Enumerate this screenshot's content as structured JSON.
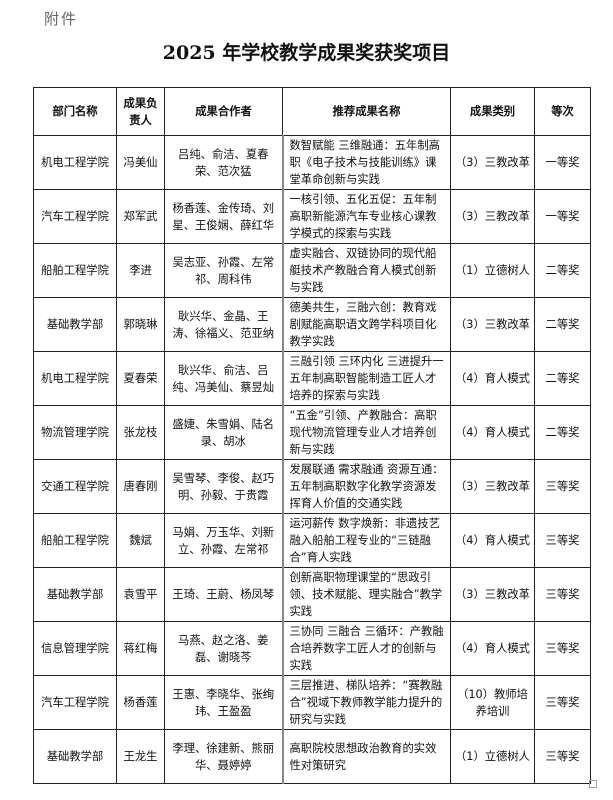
{
  "attachment_label": "附件",
  "title": "2025 年学校教学成果奖获奖项目",
  "table": {
    "headers": [
      "部门名称",
      "成果负责人",
      "成果合作者",
      "推荐成果名称",
      "成果类别",
      "等次"
    ],
    "rows": [
      [
        "机电工程学院",
        "冯美仙",
        "吕纯、俞洁、夏春荣、范次猛",
        "数智赋能 三维融通：五年制高职《电子技术与技能训练》课堂革命创新与实践",
        "（3）三教改革",
        "一等奖"
      ],
      [
        "汽车工程学院",
        "郑军武",
        "杨香莲、金传琦、刘星、王俊娴、薛红华",
        "一核引领、五化五促：五年制高职新能源汽车专业核心课教学模式的探索与实践",
        "（3）三教改革",
        "一等奖"
      ],
      [
        "船舶工程学院",
        "李进",
        "吴志亚、孙霞、左常祁、周科伟",
        "虚实融合、双链协同的现代船艇技术产教融合育人模式创新与实践",
        "（1）立德树人",
        "二等奖"
      ],
      [
        "基础教学部",
        "郭晓琳",
        "耿兴华、金晶、王涛、徐福义、范亚纳",
        "德美共生，三融六创：教育戏剧赋能高职语文跨学科项目化教学实践",
        "（3）三教改革",
        "二等奖"
      ],
      [
        "机电工程学院",
        "夏春荣",
        "耿兴华、俞洁、吕纯、冯美仙、蔡昱灿",
        "三融引领 三环内化 三进提升一五年制高职智能制造工匠人才培养的探索与实践",
        "（4）育人模式",
        "二等奖"
      ],
      [
        "物流管理学院",
        "张龙枝",
        "盛婕、朱雪娟、陆名录、胡冰",
        "“五金”引领、产教融合：高职现代物流管理专业人才培养创新与实践",
        "（4）育人模式",
        "二等奖"
      ],
      [
        "交通工程学院",
        "唐春刚",
        "吴雪琴、李俊、赵巧明、孙毅、于贵霞",
        "发展联通 需求融通 资源互通：五年制高职数字化教学资源发挥育人价值的交通实践",
        "（3）三教改革",
        "三等奖"
      ],
      [
        "船舶工程学院",
        "魏斌",
        "马娟、万玉华、刘新立、孙霞、左常祁",
        "运河薪传 数字焕新：非遗技艺融入船舶工程专业的“三链融合”育人实践",
        "（4）育人模式",
        "三等奖"
      ],
      [
        "基础教学部",
        "袁雪平",
        "王琦、王蔚、杨凤琴",
        "创新高职物理课堂的“思政引领、技术赋能、理实融合”教学实践",
        "（3）三教改革",
        "三等奖"
      ],
      [
        "信息管理学院",
        "蒋红梅",
        "马燕、赵之洛、姜磊、谢晓芩",
        "三协同 三融合 三循环：产教融合培养数字工匠人才的创新与实践",
        "（4）育人模式",
        "三等奖"
      ],
      [
        "汽车工程学院",
        "杨香莲",
        "王惠、李晓华、张绚玮、王盈盈",
        "三层推进、梯队培养：“赛教融合”视域下教师教学能力提升的研究与实践",
        "（10）教师培养培训",
        "三等奖"
      ],
      [
        "基础教学部",
        "王龙生",
        "李理、徐建新、熊丽华、聂婷婷",
        "高职院校思想政治教育的实效性对策研究",
        "（1）立德树人",
        "三等奖"
      ]
    ]
  }
}
